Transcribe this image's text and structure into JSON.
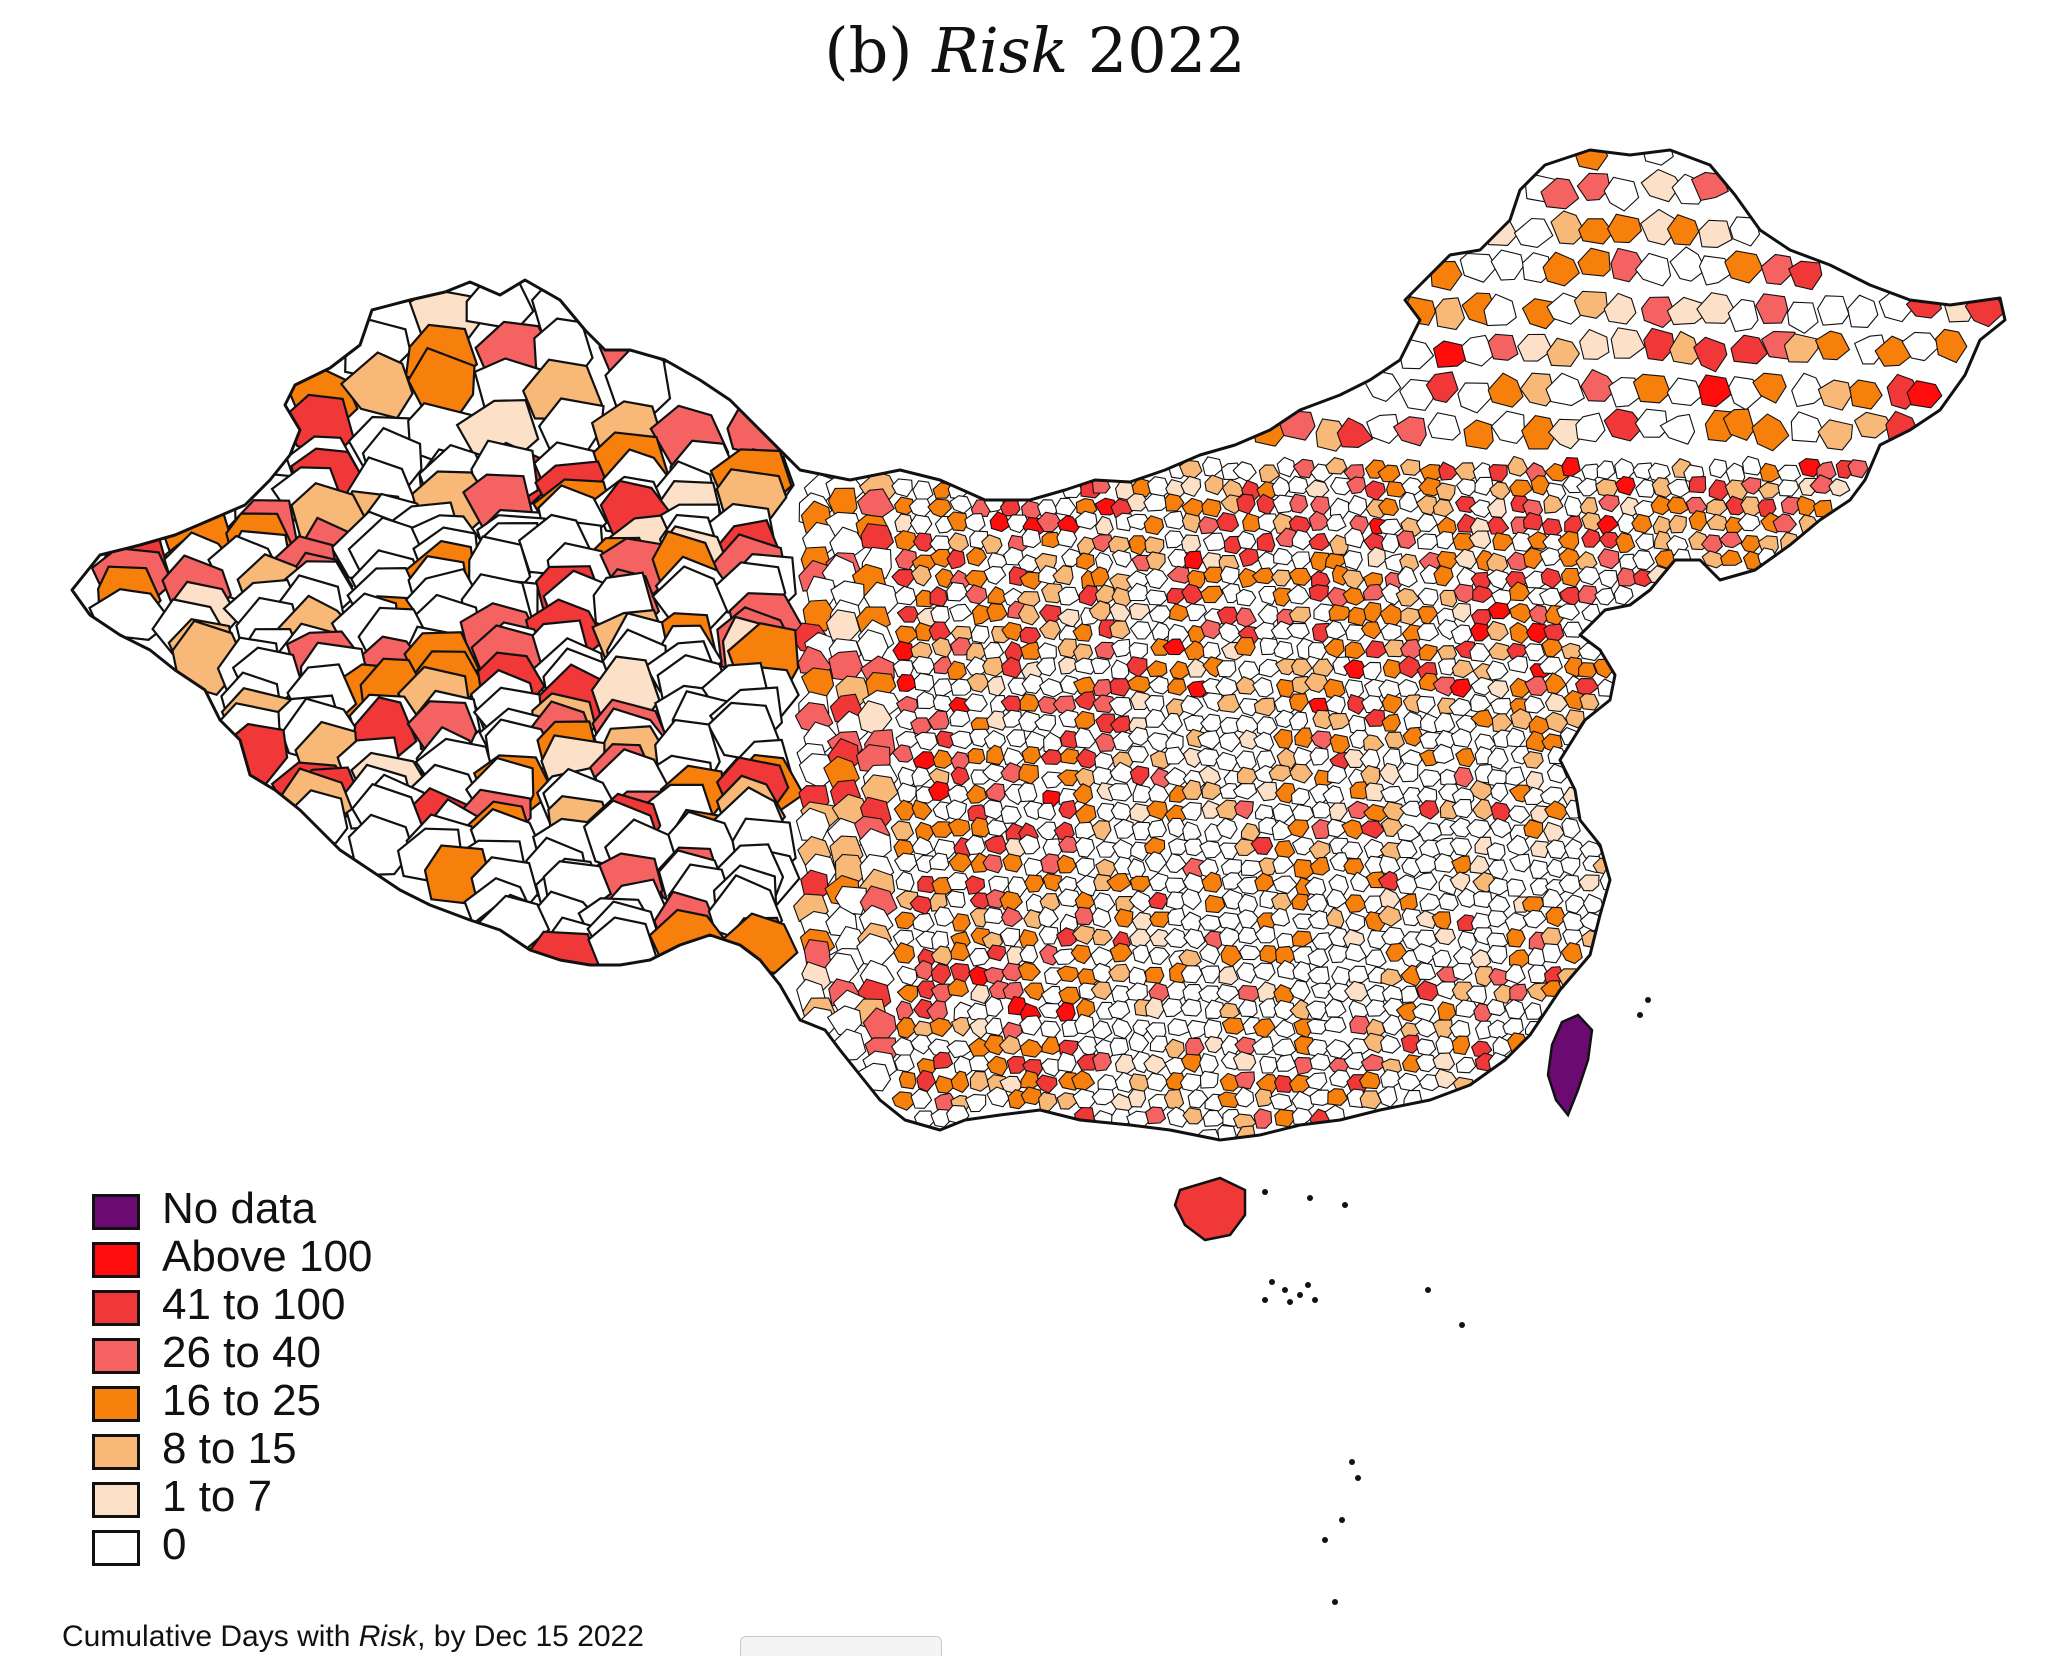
{
  "title": {
    "prefix": "(b) ",
    "italic": "Risk",
    "suffix": " 2022"
  },
  "caption": {
    "prefix": "Cumulative Days with ",
    "italic": "Risk",
    "suffix": ", by Dec 15 2022"
  },
  "colors": {
    "outline": "#111111",
    "background": "#ffffff"
  },
  "legend": {
    "items": [
      {
        "label": "No data",
        "color": "#6b0b72"
      },
      {
        "label": "Above 100",
        "color": "#ff0d0d"
      },
      {
        "label": "41 to 100",
        "color": "#f03838"
      },
      {
        "label": "26 to 40",
        "color": "#f56262"
      },
      {
        "label": "16 to 25",
        "color": "#f77f0c"
      },
      {
        "label": "8 to 15",
        "color": "#f8b878"
      },
      {
        "label": "1 to 7",
        "color": "#fde0c8"
      },
      {
        "label": "0",
        "color": "#ffffff"
      }
    ]
  }
}
